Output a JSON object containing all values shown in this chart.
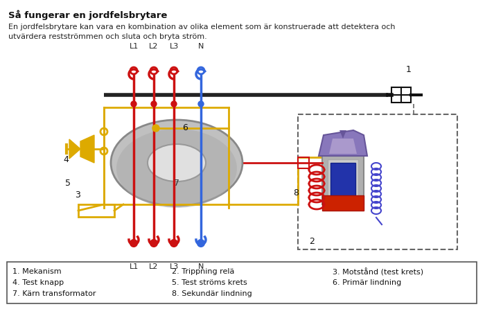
{
  "title": "Så fungerar en jordfelsbrytare",
  "subtitle": "En jordfelsbrytare kan vara en kombination av olika element som är konstruerade att detektera och\nutvärdera restströmmen och sluta och bryta ström.",
  "legend_items": [
    [
      "1. Mekanism",
      "2. Trippning relä",
      "3. Motstånd (test krets)"
    ],
    [
      "4. Test knapp",
      "5. Test ströms krets",
      "6. Primär lindning"
    ],
    [
      "7. Kärn transformator",
      "8. Sekundär lindning",
      ""
    ]
  ],
  "bg_color": "#ffffff",
  "red_color": "#cc1111",
  "blue_color": "#3366dd",
  "yellow_color": "#ddaa00",
  "gray_color": "#b8b8b8",
  "gray_dark": "#888888",
  "gray_inner": "#d8d8d8",
  "black": "#111111",
  "purple": "#7766bb",
  "relay_gray": "#aaaaaa"
}
